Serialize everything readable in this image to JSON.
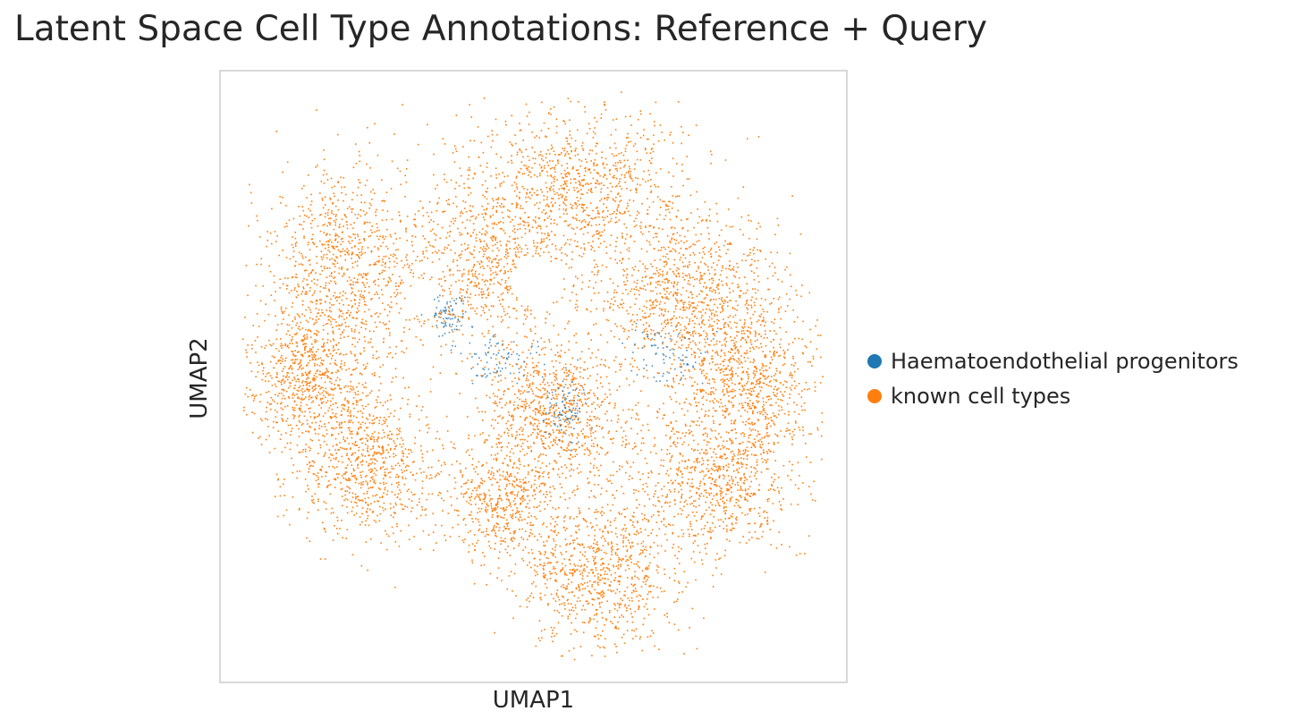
{
  "chart_data": {
    "type": "scatter",
    "title": "Latent Space Cell Type Annotations: Reference + Query",
    "xlabel": "UMAP1",
    "ylabel": "UMAP2",
    "xticks": [],
    "yticks": [],
    "grid": false,
    "legend_position": "right",
    "series": [
      {
        "name": "Haematoendothelial progenitors",
        "color": "#1f77b4",
        "description_of_distribution": "sparse points scattered within central regions of the embedding"
      },
      {
        "name": "known cell types",
        "color": "#ff7f0e",
        "description_of_distribution": "dense cloud forming a large multi-lobed shape filling most of the embedding"
      }
    ]
  }
}
